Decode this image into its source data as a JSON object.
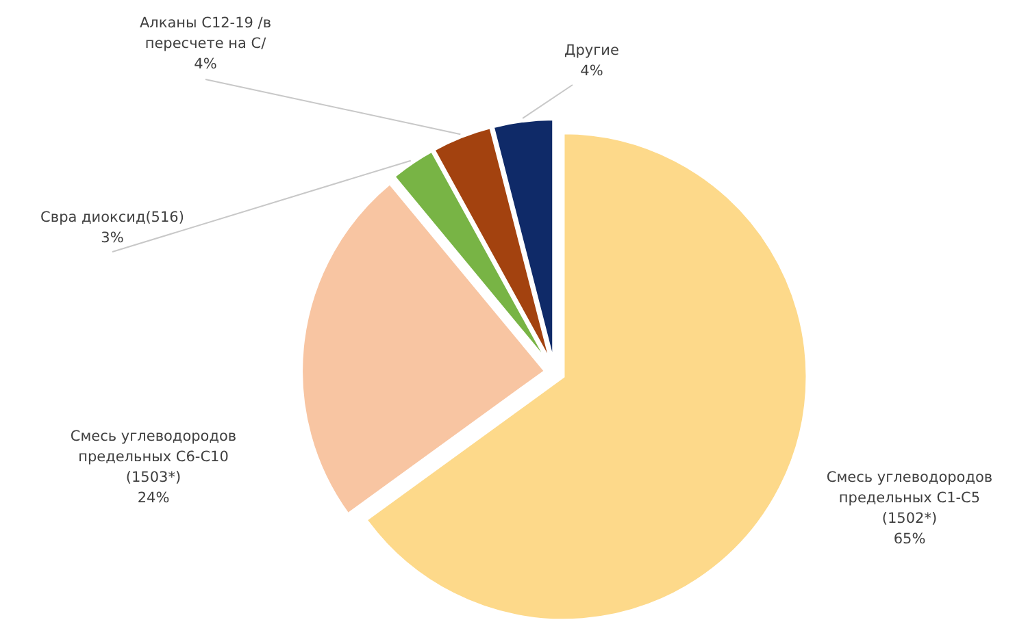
{
  "chart_data": {
    "type": "pie",
    "categories": [
      "Смесь углеводородов предельных С1-С5 (1502*)",
      "Смесь углеводородов предельных С6-С10 (1503*)",
      "Свра диоксид(516)",
      "Алканы С12-19 /в пересчете на С/",
      "Другие"
    ],
    "values": [
      65,
      24,
      3,
      4,
      4
    ],
    "value_labels": [
      "65%",
      "24%",
      "3%",
      "4%",
      "4%"
    ],
    "colors": [
      "#fdd98a",
      "#f8c5a2",
      "#78b445",
      "#a3420f",
      "#0f2a68"
    ],
    "legend": false
  }
}
